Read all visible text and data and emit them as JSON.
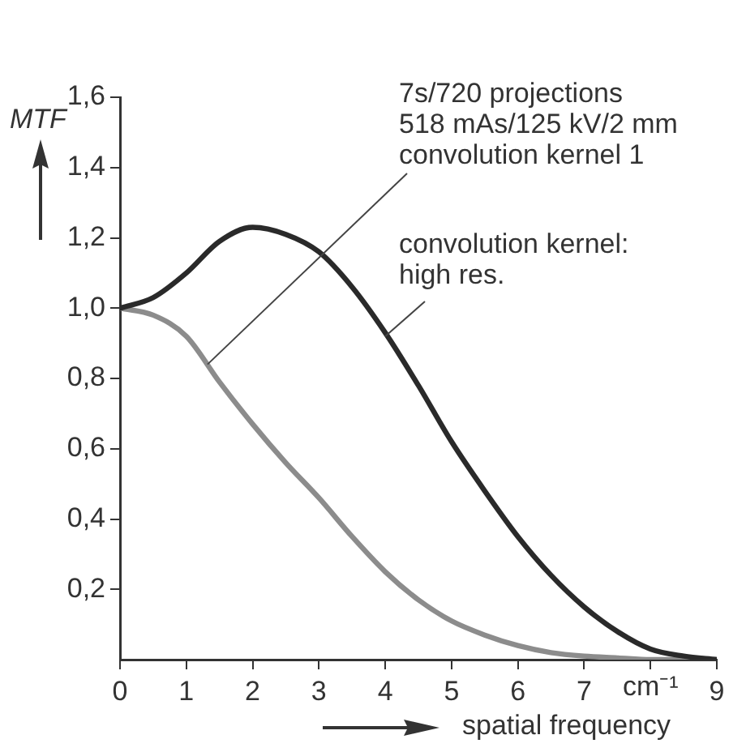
{
  "chart_data": {
    "type": "line",
    "xlabel": "spatial frequency",
    "ylabel": "MTF",
    "series": [
      {
        "color": "#2a2a2a",
        "x": [
          0,
          0.5,
          1,
          1.5,
          2,
          2.5,
          3,
          3.5,
          4,
          4.5,
          5,
          5.5,
          6,
          6.5,
          7,
          7.5,
          8,
          8.5,
          9
        ],
        "values": [
          1.0,
          1.03,
          1.1,
          1.19,
          1.23,
          1.21,
          1.16,
          1.06,
          0.93,
          0.78,
          0.62,
          0.48,
          0.35,
          0.24,
          0.15,
          0.08,
          0.03,
          0.01,
          0.0
        ]
      },
      {
        "color": "#8c8c8c",
        "x": [
          0,
          0.5,
          1,
          1.5,
          2,
          2.5,
          3,
          3.5,
          4,
          4.5,
          5,
          5.5,
          6,
          6.5,
          7,
          7.5,
          8,
          8.5,
          9
        ],
        "values": [
          1.0,
          0.98,
          0.92,
          0.79,
          0.67,
          0.56,
          0.46,
          0.35,
          0.25,
          0.17,
          0.11,
          0.07,
          0.04,
          0.02,
          0.01,
          0.005,
          0.0,
          0.0,
          0.0
        ]
      }
    ],
    "xlim": [
      0,
      9
    ],
    "xticks": [
      0,
      1,
      2,
      3,
      4,
      5,
      6,
      7,
      {
        "value": 8,
        "label": null
      },
      9
    ],
    "ylim": [
      0,
      1.6
    ],
    "yticks": [
      {
        "value": 0.2,
        "label": "0,2"
      },
      {
        "value": 0.4,
        "label": "0,4"
      },
      {
        "value": 0.6,
        "label": "0,6"
      },
      {
        "value": 0.8,
        "label": "0,8"
      },
      {
        "value": 1.0,
        "label": "1,0"
      },
      {
        "value": 1.2,
        "label": "1,2"
      },
      {
        "value": 1.4,
        "label": "1,4"
      },
      {
        "value": 1.6,
        "label": "1,6"
      }
    ],
    "grid": false,
    "legend": false,
    "marker": "none",
    "line_style": "solid",
    "annotations": [
      {
        "text": "7s/720 projections\n518 mAs/125 kV/2 mm\nconvolution kernel 1",
        "x": 1.32,
        "y": 0.84
      },
      {
        "text": "convolution kernel:\nhigh res.",
        "x": 4.0,
        "y": 0.92
      },
      "cm⁻¹"
    ]
  }
}
